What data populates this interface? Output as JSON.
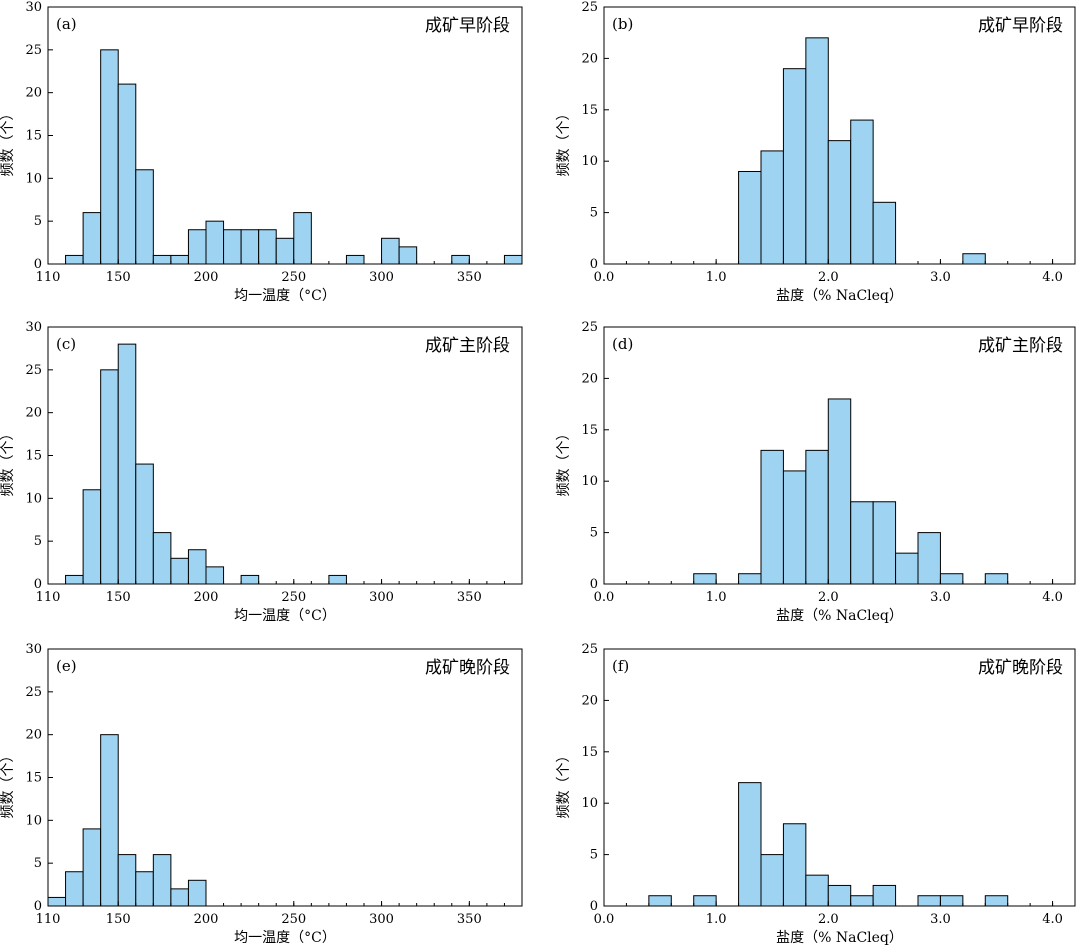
{
  "chart_data": [
    {
      "type": "bar",
      "panel": "(a)",
      "stage": "成矿早阶段",
      "xlabel": "均一温度（°C）",
      "ylabel": "频数（个）",
      "xlim": [
        110,
        380
      ],
      "ylim": [
        0,
        30
      ],
      "xticks": [
        110,
        150,
        200,
        250,
        300,
        350
      ],
      "yticks": [
        0,
        5,
        10,
        15,
        20,
        25,
        30
      ],
      "bin_width": 10,
      "x": [
        125,
        135,
        145,
        155,
        165,
        175,
        185,
        195,
        205,
        215,
        225,
        235,
        245,
        255,
        285,
        305,
        315,
        345,
        375
      ],
      "values": [
        1,
        6,
        25,
        21,
        11,
        1,
        1,
        4,
        5,
        4,
        4,
        4,
        3,
        6,
        1,
        3,
        2,
        1,
        1
      ]
    },
    {
      "type": "bar",
      "panel": "(b)",
      "stage": "成矿早阶段",
      "xlabel": "盐度（% NaCleq）",
      "ylabel": "频数（个）",
      "xlim": [
        0,
        4.2
      ],
      "ylim": [
        0,
        25
      ],
      "xticks": [
        "0.0",
        "1.0",
        "2.0",
        "3.0",
        "4.0"
      ],
      "yticks": [
        0,
        5,
        10,
        15,
        20,
        25
      ],
      "bin_width": 0.2,
      "x": [
        1.3,
        1.5,
        1.7,
        1.9,
        2.1,
        2.3,
        2.5,
        3.3
      ],
      "values": [
        9,
        11,
        19,
        22,
        12,
        14,
        6,
        1
      ]
    },
    {
      "type": "bar",
      "panel": "(c)",
      "stage": "成矿主阶段",
      "xlabel": "均一温度（°C）",
      "ylabel": "频数（个）",
      "xlim": [
        110,
        380
      ],
      "ylim": [
        0,
        30
      ],
      "xticks": [
        110,
        150,
        200,
        250,
        300,
        350
      ],
      "yticks": [
        0,
        5,
        10,
        15,
        20,
        25,
        30
      ],
      "bin_width": 10,
      "x": [
        125,
        135,
        145,
        155,
        165,
        175,
        185,
        195,
        205,
        225,
        275
      ],
      "values": [
        1,
        11,
        25,
        28,
        14,
        6,
        3,
        4,
        2,
        1,
        1
      ]
    },
    {
      "type": "bar",
      "panel": "(d)",
      "stage": "成矿主阶段",
      "xlabel": "盐度（% NaCleq）",
      "ylabel": "频数（个）",
      "xlim": [
        0,
        4.2
      ],
      "ylim": [
        0,
        25
      ],
      "xticks": [
        "0.0",
        "1.0",
        "2.0",
        "3.0",
        "4.0"
      ],
      "yticks": [
        0,
        5,
        10,
        15,
        20,
        25
      ],
      "bin_width": 0.2,
      "x": [
        0.9,
        1.3,
        1.5,
        1.7,
        1.9,
        2.1,
        2.3,
        2.5,
        2.7,
        2.9,
        3.1,
        3.5
      ],
      "values": [
        1,
        1,
        13,
        11,
        13,
        18,
        8,
        8,
        3,
        5,
        1,
        1
      ]
    },
    {
      "type": "bar",
      "panel": "(e)",
      "stage": "成矿晚阶段",
      "xlabel": "均一温度（°C）",
      "ylabel": "频数（个）",
      "xlim": [
        110,
        380
      ],
      "ylim": [
        0,
        30
      ],
      "xticks": [
        110,
        150,
        200,
        250,
        300,
        350
      ],
      "yticks": [
        0,
        5,
        10,
        15,
        20,
        25,
        30
      ],
      "bin_width": 10,
      "x": [
        115,
        125,
        135,
        145,
        155,
        165,
        175,
        185,
        195
      ],
      "values": [
        1,
        4,
        9,
        20,
        6,
        4,
        6,
        2,
        3
      ]
    },
    {
      "type": "bar",
      "panel": "(f)",
      "stage": "成矿晚阶段",
      "xlabel": "盐度（% NaCleq）",
      "ylabel": "频数（个）",
      "xlim": [
        0,
        4.2
      ],
      "ylim": [
        0,
        25
      ],
      "xticks": [
        "0.0",
        "1.0",
        "2.0",
        "3.0",
        "4.0"
      ],
      "yticks": [
        0,
        5,
        10,
        15,
        20,
        25
      ],
      "bin_width": 0.2,
      "x": [
        0.5,
        0.9,
        1.3,
        1.5,
        1.7,
        1.9,
        2.1,
        2.3,
        2.5,
        2.9,
        3.1,
        3.5
      ],
      "values": [
        1,
        1,
        12,
        5,
        8,
        3,
        2,
        1,
        2,
        1,
        1,
        1
      ]
    }
  ]
}
